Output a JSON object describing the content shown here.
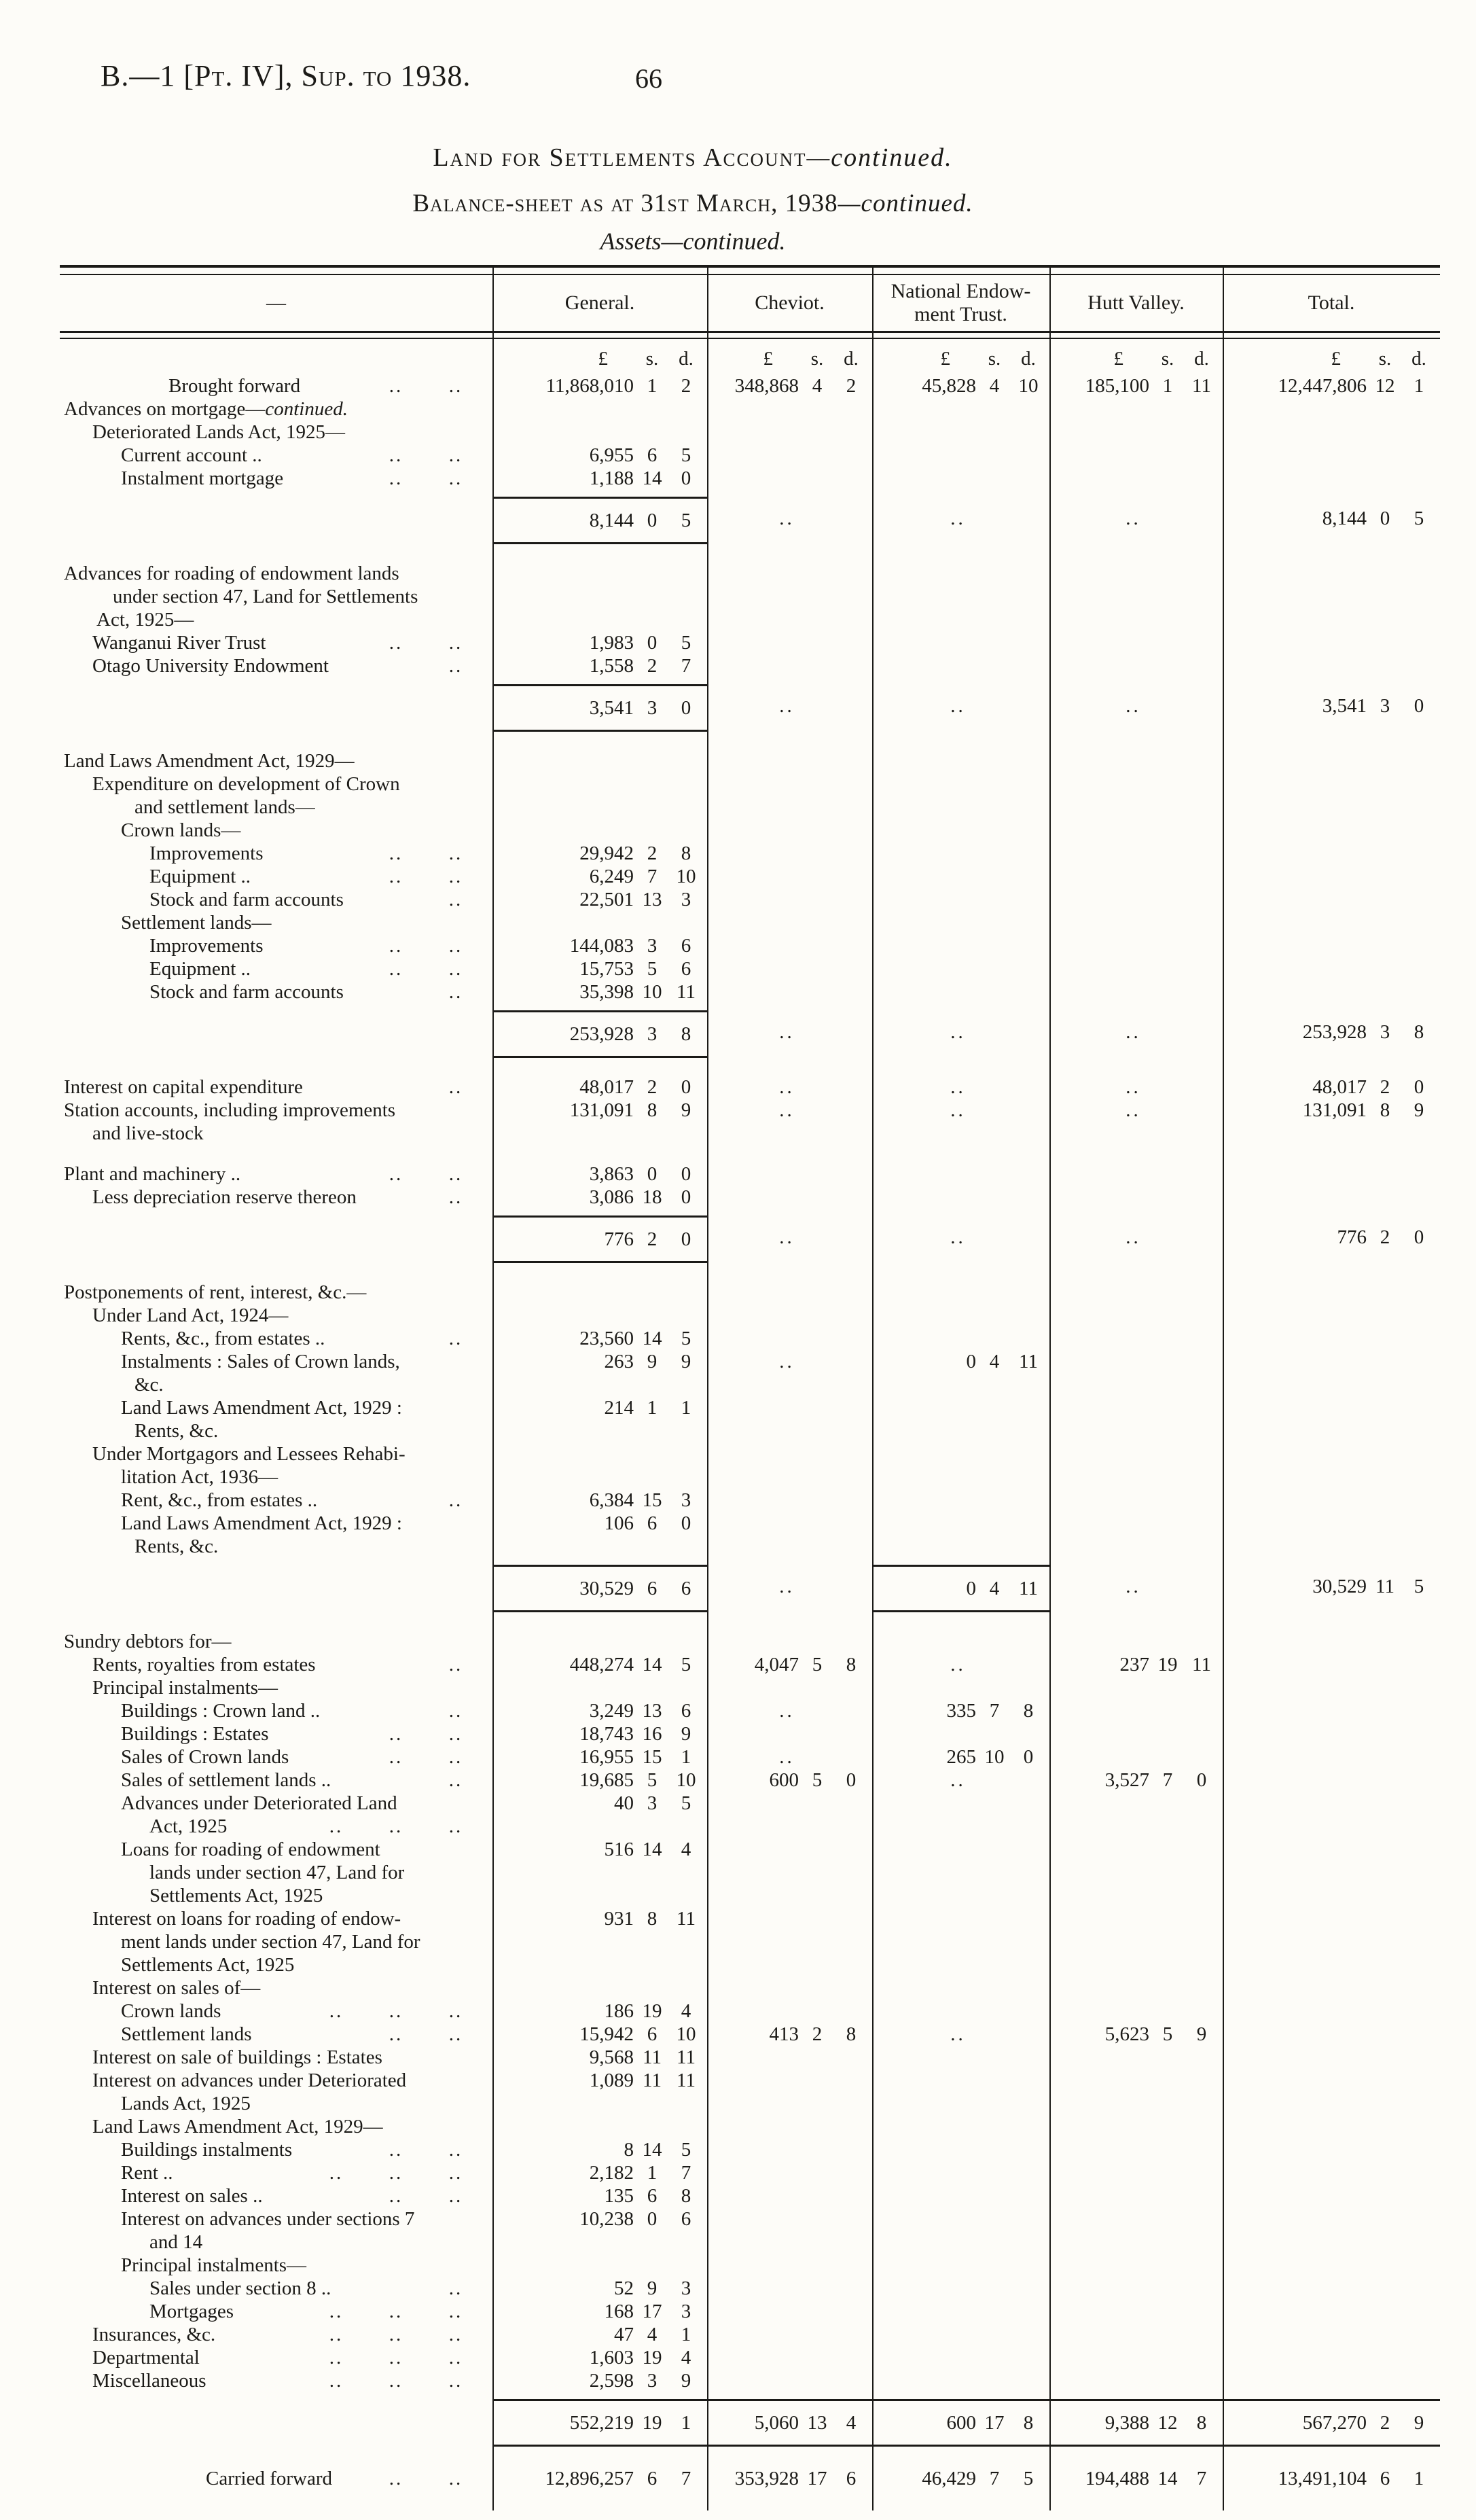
{
  "page": {
    "doc_ref": "B.—1 [Pt. IV], Sup. to 1938.",
    "page_number": "66",
    "title1": {
      "caps": "Land for Settlements Account",
      "cont": "—continued."
    },
    "title2": {
      "caps": "Balance-sheet as at 31st March, 1938",
      "cont": "—continued."
    },
    "title3": "Assets—continued."
  },
  "table": {
    "corner_label": "—",
    "columns": [
      {
        "key": "general",
        "label": "General."
      },
      {
        "key": "cheviot",
        "label": "Cheviot."
      },
      {
        "key": "national-endowment-trust",
        "label": "National Endow-\nment Trust."
      },
      {
        "key": "hutt-valley",
        "label": "Hutt Valley."
      },
      {
        "key": "total",
        "label": "Total."
      }
    ],
    "units": [
      "£",
      "s.",
      "d."
    ],
    "rows": [
      {
        "t": "units"
      },
      {
        "cls": "bf",
        "l": [
          [
            "Brought forward",
            "bf",
            2
          ]
        ],
        "v": [
          "11,868,010 1 2",
          "348,868 4 2",
          "45,828 4 10",
          "185,100 1 11",
          "12,447,806 12 1"
        ]
      },
      {
        "l": [
          [
            "Advances on mortgage—*continued.*",
            0,
            0
          ]
        ]
      },
      {
        "l": [
          [
            "Deteriorated Lands Act, 1925—",
            1,
            0
          ]
        ]
      },
      {
        "l": [
          [
            "Current account ..",
            2,
            2
          ]
        ],
        "v": [
          "6,955 6 5",
          null,
          null,
          null,
          null
        ]
      },
      {
        "l": [
          [
            "Instalment mortgage",
            2,
            2
          ]
        ],
        "v": [
          "1,188 14 0",
          null,
          null,
          null,
          null
        ]
      },
      {
        "sub": true,
        "rules": [
          0
        ],
        "v": [
          "8,144 0 5",
          "..",
          "..",
          "..",
          "8,144 0 5"
        ]
      },
      {
        "l": [
          [
            "Advances for roading of endowment lands",
            0,
            0
          ],
          [
            "under section 47, Land for Settlements",
            "a",
            0
          ],
          [
            "Act, 1925—",
            "c",
            0
          ]
        ]
      },
      {
        "l": [
          [
            "Wanganui River Trust",
            1,
            2
          ]
        ],
        "v": [
          "1,983 0 5",
          null,
          null,
          null,
          null
        ]
      },
      {
        "l": [
          [
            "Otago University Endowment",
            1,
            1
          ]
        ],
        "v": [
          "1,558 2 7",
          null,
          null,
          null,
          null
        ]
      },
      {
        "sub": true,
        "rules": [
          0
        ],
        "v": [
          "3,541 3 0",
          "..",
          "..",
          "..",
          "3,541 3 0"
        ]
      },
      {
        "l": [
          [
            "Land Laws Amendment Act, 1929—",
            0,
            0
          ]
        ]
      },
      {
        "l": [
          [
            "Expenditure on development of Crown",
            1,
            0
          ],
          [
            "and settlement lands—",
            "b",
            0
          ]
        ]
      },
      {
        "l": [
          [
            "Crown lands—",
            2,
            0
          ]
        ]
      },
      {
        "l": [
          [
            "Improvements",
            3,
            2
          ]
        ],
        "v": [
          "29,942 2 8",
          null,
          null,
          null,
          null
        ]
      },
      {
        "l": [
          [
            "Equipment ..",
            3,
            2
          ]
        ],
        "v": [
          "6,249 7 10",
          null,
          null,
          null,
          null
        ]
      },
      {
        "l": [
          [
            "Stock and farm accounts",
            3,
            1
          ]
        ],
        "v": [
          "22,501 13 3",
          null,
          null,
          null,
          null
        ]
      },
      {
        "l": [
          [
            "Settlement lands—",
            2,
            0
          ]
        ]
      },
      {
        "l": [
          [
            "Improvements",
            3,
            2
          ]
        ],
        "v": [
          "144,083 3 6",
          null,
          null,
          null,
          null
        ]
      },
      {
        "l": [
          [
            "Equipment ..",
            3,
            2
          ]
        ],
        "v": [
          "15,753 5 6",
          null,
          null,
          null,
          null
        ]
      },
      {
        "l": [
          [
            "Stock and farm accounts",
            3,
            1
          ]
        ],
        "v": [
          "35,398 10 11",
          null,
          null,
          null,
          null
        ]
      },
      {
        "sub": true,
        "rules": [
          0
        ],
        "v": [
          "253,928 3 8",
          "..",
          "..",
          "..",
          "253,928 3 8"
        ]
      },
      {
        "l": [
          [
            "Interest on capital expenditure",
            0,
            1
          ]
        ],
        "v": [
          "48,017 2 0",
          "..",
          "..",
          "..",
          "48,017 2 0"
        ]
      },
      {
        "l": [
          [
            "Station accounts, including improvements",
            0,
            0
          ],
          [
            "and live-stock",
            1,
            0
          ]
        ],
        "v": [
          "131,091 8 9",
          "..",
          "..",
          "..",
          "131,091 8 9"
        ]
      },
      {
        "sp": 26,
        "l": [
          [
            "Plant and machinery ..",
            0,
            2
          ]
        ],
        "v": [
          "3,863 0 0",
          null,
          null,
          null,
          null
        ]
      },
      {
        "l": [
          [
            "Less depreciation reserve thereon",
            1,
            1
          ]
        ],
        "v": [
          "3,086 18 0",
          null,
          null,
          null,
          null
        ]
      },
      {
        "sub": true,
        "rules": [
          0
        ],
        "v": [
          "776 2 0",
          "..",
          "..",
          "..",
          "776 2 0"
        ]
      },
      {
        "l": [
          [
            "Postponements of rent, interest, &c.—",
            0,
            0
          ]
        ]
      },
      {
        "l": [
          [
            "Under Land Act, 1924—",
            1,
            0
          ]
        ]
      },
      {
        "l": [
          [
            "Rents, &c., from estates ..",
            2,
            1
          ]
        ],
        "v": [
          "23,560 14 5",
          null,
          null,
          null,
          null
        ]
      },
      {
        "l": [
          [
            "Instalments :  Sales of Crown lands,",
            2,
            0
          ],
          [
            "&c.",
            "b",
            0
          ]
        ],
        "v": [
          "263 9 9",
          "..",
          "0 4 11",
          null,
          null
        ]
      },
      {
        "l": [
          [
            "Land Laws Amendment Act, 1929 :",
            2,
            0
          ],
          [
            "Rents, &c.",
            "b",
            0
          ]
        ],
        "v": [
          "214 1 1",
          null,
          null,
          null,
          null
        ]
      },
      {
        "l": [
          [
            "Under Mortgagors and Lessees Rehabi-",
            1,
            0
          ],
          [
            "litation Act, 1936—",
            2,
            0
          ]
        ]
      },
      {
        "l": [
          [
            "Rent, &c., from estates ..",
            2,
            1
          ]
        ],
        "v": [
          "6,384 15 3",
          null,
          null,
          null,
          null
        ]
      },
      {
        "l": [
          [
            "Land Laws Amendment Act, 1929 :",
            2,
            0
          ],
          [
            "Rents, &c.",
            "b",
            0
          ]
        ],
        "v": [
          "106 6 0",
          null,
          null,
          null,
          null
        ]
      },
      {
        "sub": true,
        "rules": [
          0,
          2
        ],
        "v": [
          "30,529 6 6",
          "..",
          "0 4 11",
          "..",
          "30,529 11 5"
        ]
      },
      {
        "l": [
          [
            "Sundry debtors for—",
            0,
            0
          ]
        ]
      },
      {
        "l": [
          [
            "Rents, royalties from estates",
            1,
            1
          ]
        ],
        "v": [
          "448,274 14 5",
          "4,047 5 8",
          "..",
          "237 19 11",
          null
        ]
      },
      {
        "l": [
          [
            "Principal instalments—",
            1,
            0
          ]
        ]
      },
      {
        "l": [
          [
            "Buildings :  Crown land ..",
            2,
            1
          ]
        ],
        "v": [
          "3,249 13 6",
          "..",
          "335 7 8",
          null,
          null
        ]
      },
      {
        "l": [
          [
            "Buildings :  Estates",
            2,
            2
          ]
        ],
        "v": [
          "18,743 16 9",
          null,
          null,
          null,
          null
        ]
      },
      {
        "l": [
          [
            "Sales of Crown lands",
            2,
            2
          ]
        ],
        "v": [
          "16,955 15 1",
          "..",
          "265 10 0",
          null,
          null
        ]
      },
      {
        "l": [
          [
            "Sales of settlement lands ..",
            2,
            1
          ]
        ],
        "v": [
          "19,685 5 10",
          "600 5 0",
          "..",
          "3,527 7 0",
          null
        ]
      },
      {
        "l": [
          [
            "Advances under Deteriorated Land",
            2,
            0
          ],
          [
            "Act, 1925",
            3,
            3
          ]
        ],
        "v": [
          "40 3 5",
          null,
          null,
          null,
          null
        ]
      },
      {
        "l": [
          [
            "Loans for roading of endowment",
            2,
            0
          ],
          [
            "lands under section 47, Land for",
            3,
            0
          ],
          [
            "Settlements Act, 1925",
            3,
            0
          ]
        ],
        "v": [
          "516 14 4",
          null,
          null,
          null,
          null
        ]
      },
      {
        "l": [
          [
            "Interest on loans for roading of endow-",
            1,
            0
          ],
          [
            "ment lands under section 47, Land for",
            2,
            0
          ],
          [
            "Settlements Act, 1925",
            2,
            0
          ]
        ],
        "v": [
          "931 8 11",
          null,
          null,
          null,
          null
        ]
      },
      {
        "l": [
          [
            "Interest on sales of—",
            1,
            0
          ]
        ]
      },
      {
        "l": [
          [
            "Crown lands",
            2,
            3
          ]
        ],
        "v": [
          "186 19 4",
          null,
          null,
          null,
          null
        ]
      },
      {
        "l": [
          [
            "Settlement lands",
            2,
            2
          ]
        ],
        "v": [
          "15,942 6 10",
          "413 2 8",
          "..",
          "5,623 5 9",
          null
        ]
      },
      {
        "l": [
          [
            "Interest on sale of buildings :  Estates",
            1,
            0
          ]
        ],
        "v": [
          "9,568 11 11",
          null,
          null,
          null,
          null
        ]
      },
      {
        "l": [
          [
            "Interest on advances under Deteriorated",
            1,
            0
          ],
          [
            "Lands Act, 1925",
            2,
            0
          ]
        ],
        "v": [
          "1,089 11 11",
          null,
          null,
          null,
          null
        ]
      },
      {
        "l": [
          [
            "Land Laws Amendment Act, 1929—",
            1,
            0
          ]
        ]
      },
      {
        "l": [
          [
            "Buildings instalments",
            2,
            2
          ]
        ],
        "v": [
          "8 14 5",
          null,
          null,
          null,
          null
        ]
      },
      {
        "l": [
          [
            "Rent ..",
            2,
            3
          ]
        ],
        "v": [
          "2,182 1 7",
          null,
          null,
          null,
          null
        ]
      },
      {
        "l": [
          [
            "Interest on sales ..",
            2,
            2
          ]
        ],
        "v": [
          "135 6 8",
          null,
          null,
          null,
          null
        ]
      },
      {
        "l": [
          [
            "Interest on advances under sections 7",
            2,
            0
          ],
          [
            "and 14",
            3,
            0
          ]
        ],
        "v": [
          "10,238 0 6",
          null,
          null,
          null,
          null
        ]
      },
      {
        "l": [
          [
            "Principal instalments—",
            2,
            0
          ]
        ]
      },
      {
        "l": [
          [
            "Sales under section 8 ..",
            3,
            1
          ]
        ],
        "v": [
          "52 9 3",
          null,
          null,
          null,
          null
        ]
      },
      {
        "l": [
          [
            "Mortgages",
            3,
            3
          ]
        ],
        "v": [
          "168 17 3",
          null,
          null,
          null,
          null
        ]
      },
      {
        "l": [
          [
            "Insurances, &c.",
            1,
            3
          ]
        ],
        "v": [
          "47 4 1",
          null,
          null,
          null,
          null
        ]
      },
      {
        "l": [
          [
            "Departmental",
            1,
            3
          ]
        ],
        "v": [
          "1,603 19 4",
          null,
          null,
          null,
          null
        ]
      },
      {
        "l": [
          [
            "Miscellaneous",
            1,
            3
          ]
        ],
        "v": [
          "2,598 3 9",
          null,
          null,
          null,
          null
        ]
      },
      {
        "sub": true,
        "rules": [
          0,
          1,
          2,
          3,
          4
        ],
        "v": [
          "552,219 19 1",
          "5,060 13 4",
          "600 17 8",
          "9,388 12 8",
          "567,270 2 9"
        ]
      },
      {
        "sp": 30,
        "cls": "cf",
        "l": [
          [
            "Carried forward",
            "cf",
            2
          ]
        ],
        "v": [
          "12,896,257 6 7",
          "353,928 17 6",
          "46,429 7 5",
          "194,488 14 7",
          "13,491,104 6 1"
        ]
      }
    ]
  }
}
